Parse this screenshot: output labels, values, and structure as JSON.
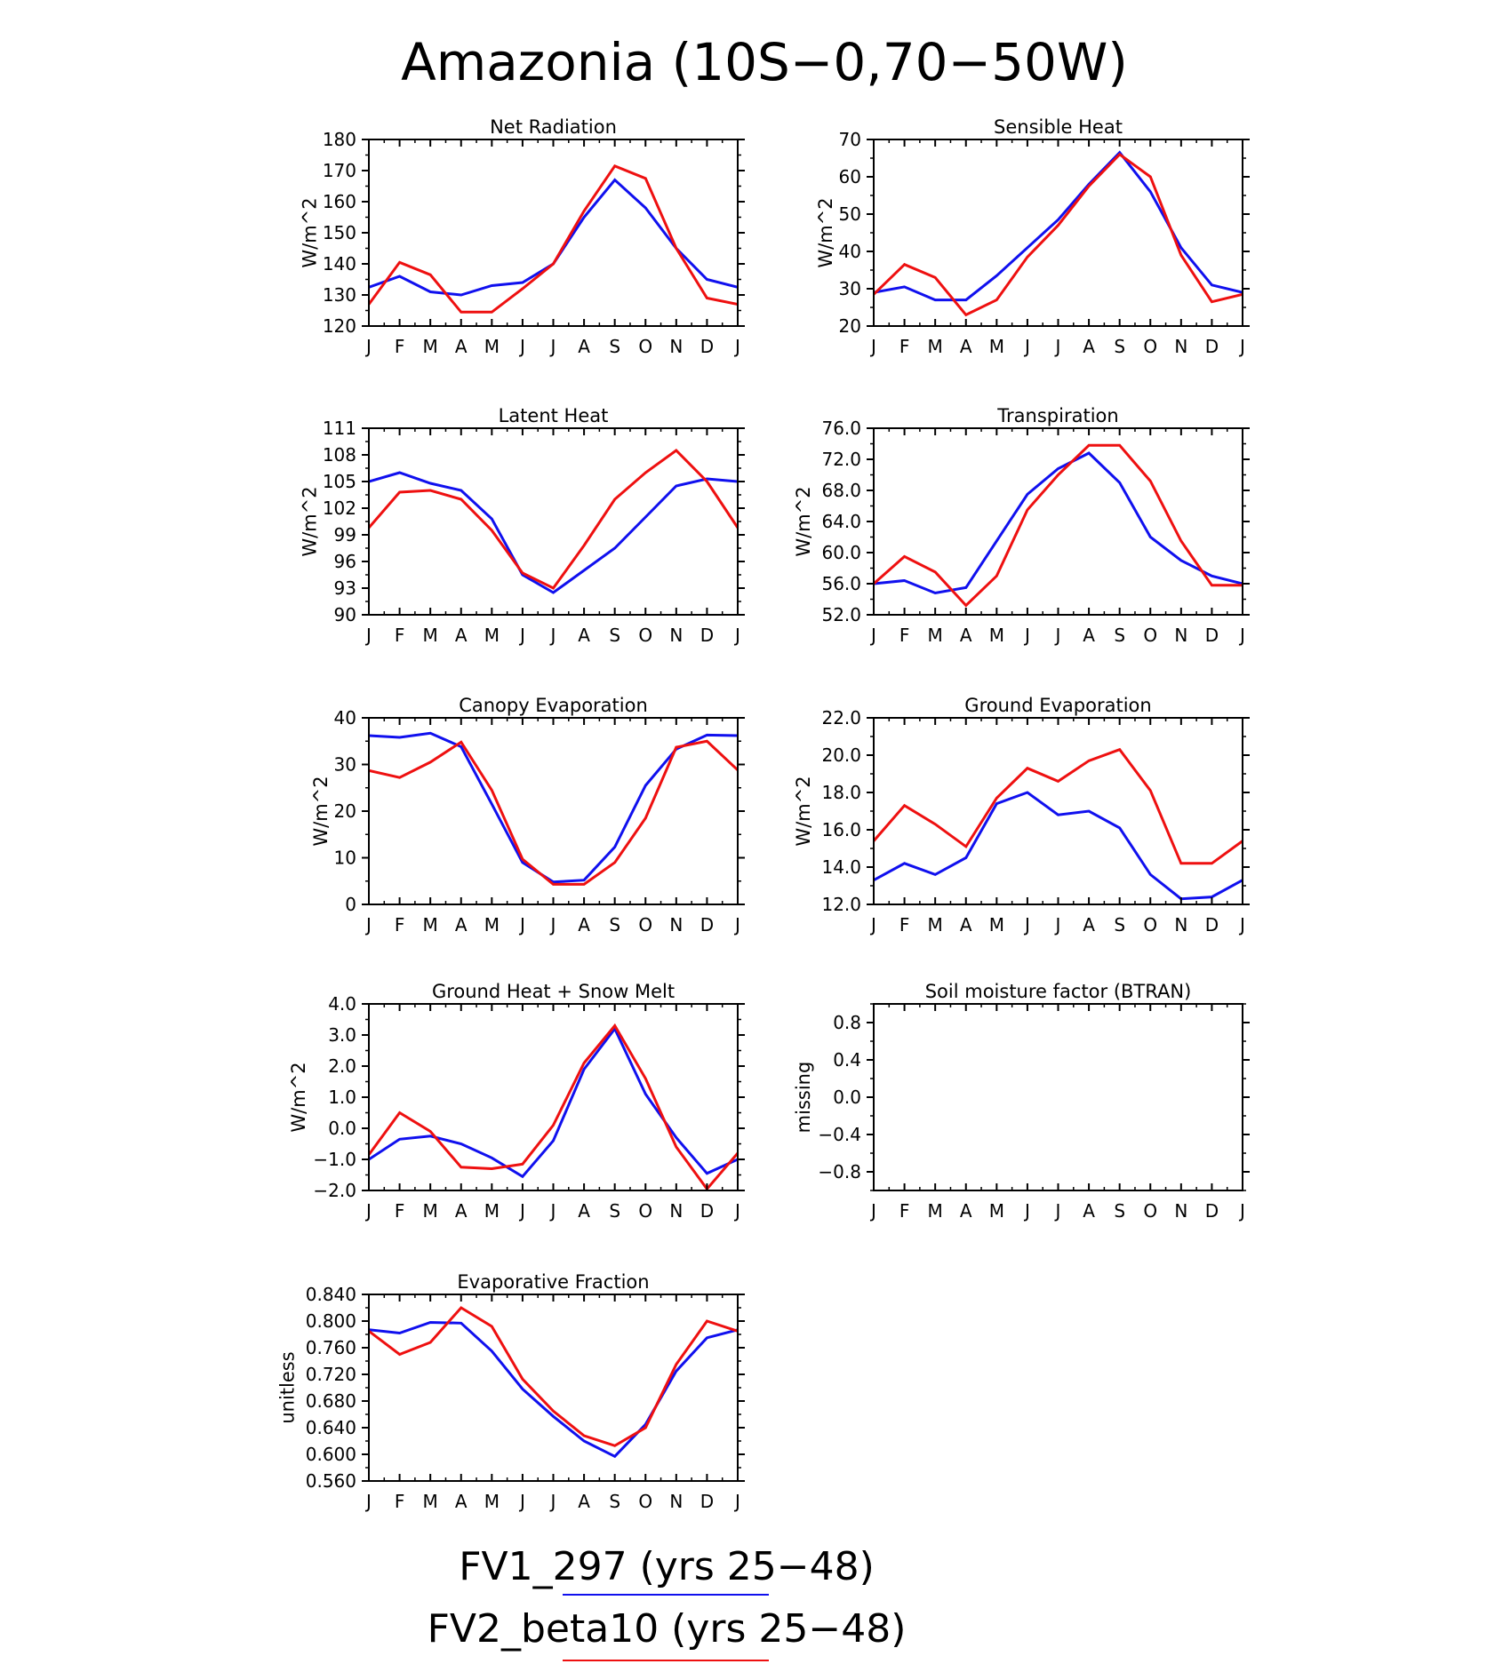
{
  "title": "Amazonia (10S−0,70−50W)",
  "months": [
    "J",
    "F",
    "M",
    "A",
    "M",
    "J",
    "J",
    "A",
    "S",
    "O",
    "N",
    "D",
    "J"
  ],
  "legend": [
    {
      "label": "FV1_297 (yrs 25−48)",
      "color": "#1010ee"
    },
    {
      "label": "FV2_beta10 (yrs 25−48)",
      "color": "#ee1010"
    }
  ],
  "chart_data": [
    {
      "type": "line",
      "title": "Net Radiation",
      "ylabel": "W/m^2",
      "ylim": [
        120,
        180
      ],
      "yticks": [
        120,
        130,
        140,
        150,
        160,
        170,
        180
      ],
      "ytick_labels": [
        "120",
        "130",
        "140",
        "150",
        "160",
        "170",
        "180"
      ],
      "x": [
        "J",
        "F",
        "M",
        "A",
        "M",
        "J",
        "J",
        "A",
        "S",
        "O",
        "N",
        "D",
        "J"
      ],
      "series": [
        {
          "name": "FV1_297 (yrs 25−48)",
          "color": "#1010ee",
          "values": [
            132.5,
            136,
            131,
            130,
            133,
            134,
            140,
            155,
            167,
            158,
            145,
            135,
            132.5
          ]
        },
        {
          "name": "FV2_beta10 (yrs 25−48)",
          "color": "#ee1010",
          "values": [
            127,
            140.5,
            136.5,
            124.5,
            124.5,
            132,
            140,
            157,
            171.5,
            167.5,
            145,
            129,
            127
          ]
        }
      ]
    },
    {
      "type": "line",
      "title": "Sensible Heat",
      "ylabel": "W/m^2",
      "ylim": [
        20,
        70
      ],
      "yticks": [
        20,
        30,
        40,
        50,
        60,
        70
      ],
      "ytick_labels": [
        "20",
        "30",
        "40",
        "50",
        "60",
        "70"
      ],
      "x": [
        "J",
        "F",
        "M",
        "A",
        "M",
        "J",
        "J",
        "A",
        "S",
        "O",
        "N",
        "D",
        "J"
      ],
      "series": [
        {
          "name": "FV1_297 (yrs 25−48)",
          "color": "#1010ee",
          "values": [
            29,
            30.5,
            27,
            27,
            33.5,
            41,
            48.5,
            58,
            66.5,
            56,
            41,
            31,
            29
          ]
        },
        {
          "name": "FV2_beta10 (yrs 25−48)",
          "color": "#ee1010",
          "values": [
            28.5,
            36.5,
            33,
            23,
            27,
            38.5,
            47,
            57.5,
            66,
            60,
            39,
            26.5,
            28.5
          ]
        }
      ]
    },
    {
      "type": "line",
      "title": "Latent Heat",
      "ylabel": "W/m^2",
      "ylim": [
        90,
        111
      ],
      "yticks": [
        90,
        93,
        96,
        99,
        102,
        105,
        108,
        111
      ],
      "ytick_labels": [
        "90",
        "93",
        "96",
        "99",
        "102",
        "105",
        "108",
        "111"
      ],
      "x": [
        "J",
        "F",
        "M",
        "A",
        "M",
        "J",
        "J",
        "A",
        "S",
        "O",
        "N",
        "D",
        "J"
      ],
      "series": [
        {
          "name": "FV1_297 (yrs 25−48)",
          "color": "#1010ee",
          "values": [
            105,
            106,
            104.8,
            104,
            100.8,
            94.5,
            92.5,
            95,
            97.5,
            101,
            104.5,
            105.3,
            105
          ]
        },
        {
          "name": "FV2_beta10 (yrs 25−48)",
          "color": "#ee1010",
          "values": [
            99.8,
            103.8,
            104,
            103,
            99.5,
            94.7,
            93,
            97.8,
            103,
            106,
            108.5,
            105,
            99.8
          ]
        }
      ]
    },
    {
      "type": "line",
      "title": "Transpiration",
      "ylabel": "W/m^2",
      "ylim": [
        52,
        76
      ],
      "yticks": [
        52,
        56,
        60,
        64,
        68,
        72,
        76
      ],
      "ytick_labels": [
        "52.0",
        "56.0",
        "60.0",
        "64.0",
        "68.0",
        "72.0",
        "76.0"
      ],
      "x": [
        "J",
        "F",
        "M",
        "A",
        "M",
        "J",
        "J",
        "A",
        "S",
        "O",
        "N",
        "D",
        "J"
      ],
      "series": [
        {
          "name": "FV1_297 (yrs 25−48)",
          "color": "#1010ee",
          "values": [
            56,
            56.4,
            54.8,
            55.5,
            61.5,
            67.5,
            70.8,
            72.8,
            69,
            62,
            59,
            57,
            56
          ]
        },
        {
          "name": "FV2_beta10 (yrs 25−48)",
          "color": "#ee1010",
          "values": [
            56,
            59.5,
            57.5,
            53.2,
            57,
            65.5,
            70,
            73.8,
            73.8,
            69.2,
            61.5,
            55.8,
            55.8
          ]
        }
      ]
    },
    {
      "type": "line",
      "title": "Canopy Evaporation",
      "ylabel": "W/m^2",
      "ylim": [
        0,
        40
      ],
      "yticks": [
        0,
        10,
        20,
        30,
        40
      ],
      "ytick_labels": [
        "0",
        "10",
        "20",
        "30",
        "40"
      ],
      "x": [
        "J",
        "F",
        "M",
        "A",
        "M",
        "J",
        "J",
        "A",
        "S",
        "O",
        "N",
        "D",
        "J"
      ],
      "series": [
        {
          "name": "FV1_297 (yrs 25−48)",
          "color": "#1010ee",
          "values": [
            36.2,
            35.8,
            36.7,
            33.8,
            21.5,
            9,
            4.8,
            5.2,
            12.3,
            25.5,
            33.3,
            36.3,
            36.2
          ]
        },
        {
          "name": "FV2_beta10 (yrs 25−48)",
          "color": "#ee1010",
          "values": [
            28.7,
            27.2,
            30.5,
            34.8,
            24.5,
            9.7,
            4.3,
            4.3,
            9,
            18.5,
            33.7,
            35,
            28.8
          ]
        }
      ]
    },
    {
      "type": "line",
      "title": "Ground Evaporation",
      "ylabel": "W/m^2",
      "ylim": [
        12,
        22
      ],
      "yticks": [
        12,
        14,
        16,
        18,
        20,
        22
      ],
      "ytick_labels": [
        "12.0",
        "14.0",
        "16.0",
        "18.0",
        "20.0",
        "22.0"
      ],
      "x": [
        "J",
        "F",
        "M",
        "A",
        "M",
        "J",
        "J",
        "A",
        "S",
        "O",
        "N",
        "D",
        "J"
      ],
      "series": [
        {
          "name": "FV1_297 (yrs 25−48)",
          "color": "#1010ee",
          "values": [
            13.3,
            14.2,
            13.6,
            14.5,
            17.4,
            18,
            16.8,
            17,
            16.1,
            13.6,
            12.3,
            12.4,
            13.3
          ]
        },
        {
          "name": "FV2_beta10 (yrs 25−48)",
          "color": "#ee1010",
          "values": [
            15.4,
            17.3,
            16.3,
            15.1,
            17.7,
            19.3,
            18.6,
            19.7,
            20.3,
            18.1,
            14.2,
            14.2,
            15.4
          ]
        }
      ]
    },
    {
      "type": "line",
      "title": "Ground Heat + Snow Melt",
      "ylabel": "W/m^2",
      "ylim": [
        -2,
        4
      ],
      "yticks": [
        -2,
        -1,
        0,
        1,
        2,
        3,
        4
      ],
      "ytick_labels": [
        "−2.0",
        "−1.0",
        "0.0",
        "1.0",
        "2.0",
        "3.0",
        "4.0"
      ],
      "x": [
        "J",
        "F",
        "M",
        "A",
        "M",
        "J",
        "J",
        "A",
        "S",
        "O",
        "N",
        "D",
        "J"
      ],
      "series": [
        {
          "name": "FV1_297 (yrs 25−48)",
          "color": "#1010ee",
          "values": [
            -1,
            -0.35,
            -0.25,
            -0.5,
            -0.95,
            -1.55,
            -0.4,
            1.9,
            3.2,
            1.1,
            -0.3,
            -1.45,
            -1
          ]
        },
        {
          "name": "FV2_beta10 (yrs 25−48)",
          "color": "#ee1010",
          "values": [
            -0.85,
            0.5,
            -0.1,
            -1.25,
            -1.3,
            -1.15,
            0.1,
            2.1,
            3.3,
            1.6,
            -0.6,
            -1.95,
            -0.8
          ]
        }
      ]
    },
    {
      "type": "line",
      "title": "Soil moisture factor (BTRAN)",
      "ylabel": "missing",
      "ylim": [
        -1,
        1
      ],
      "yticks": [
        -0.8,
        -0.4,
        0,
        0.4,
        0.8
      ],
      "ytick_labels": [
        "−0.8",
        "−0.4",
        "0.0",
        "0.4",
        "0.8"
      ],
      "x": [
        "J",
        "F",
        "M",
        "A",
        "M",
        "J",
        "J",
        "A",
        "S",
        "O",
        "N",
        "D",
        "J"
      ],
      "series": []
    },
    {
      "type": "line",
      "title": "Evaporative Fraction",
      "ylabel": "unitless",
      "ylim": [
        0.56,
        0.84
      ],
      "yticks": [
        0.56,
        0.6,
        0.64,
        0.68,
        0.72,
        0.76,
        0.8,
        0.84
      ],
      "ytick_labels": [
        "0.560",
        "0.600",
        "0.640",
        "0.680",
        "0.720",
        "0.760",
        "0.800",
        "0.840"
      ],
      "x": [
        "J",
        "F",
        "M",
        "A",
        "M",
        "J",
        "J",
        "A",
        "S",
        "O",
        "N",
        "D",
        "J"
      ],
      "series": [
        {
          "name": "FV1_297 (yrs 25−48)",
          "color": "#1010ee",
          "values": [
            0.787,
            0.782,
            0.798,
            0.797,
            0.755,
            0.698,
            0.657,
            0.62,
            0.597,
            0.645,
            0.725,
            0.775,
            0.787
          ]
        },
        {
          "name": "FV2_beta10 (yrs 25−48)",
          "color": "#ee1010",
          "values": [
            0.785,
            0.75,
            0.768,
            0.82,
            0.792,
            0.713,
            0.665,
            0.628,
            0.613,
            0.64,
            0.735,
            0.8,
            0.785
          ]
        }
      ]
    }
  ]
}
